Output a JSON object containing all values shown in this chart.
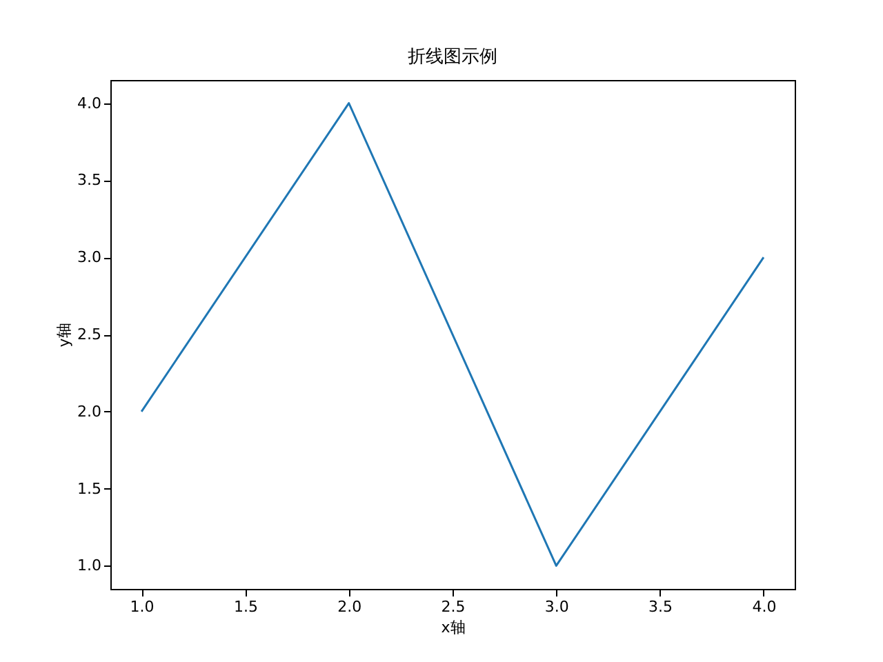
{
  "chart_data": {
    "type": "line",
    "title": "折线图示例",
    "xlabel": "x轴",
    "ylabel": "y轴",
    "x": [
      1,
      2,
      3,
      4
    ],
    "series": [
      {
        "color": "#1f77b4",
        "values": [
          2,
          4,
          1,
          3
        ]
      }
    ],
    "xlim": [
      0.85,
      4.15
    ],
    "ylim": [
      0.85,
      4.15
    ],
    "xticks": [
      {
        "value": 1,
        "label": "1.0"
      },
      {
        "value": 1.5,
        "label": "1.5"
      },
      {
        "value": 2,
        "label": "2.0"
      },
      {
        "value": 2.5,
        "label": "2.5"
      },
      {
        "value": 3,
        "label": "3.0"
      },
      {
        "value": 3.5,
        "label": "3.5"
      },
      {
        "value": 4,
        "label": "4.0"
      }
    ],
    "yticks": [
      {
        "value": 1,
        "label": "1.0"
      },
      {
        "value": 1.5,
        "label": "1.5"
      },
      {
        "value": 2,
        "label": "2.0"
      },
      {
        "value": 2.5,
        "label": "2.5"
      },
      {
        "value": 3,
        "label": "3.0"
      },
      {
        "value": 3.5,
        "label": "3.5"
      },
      {
        "value": 4,
        "label": "4.0"
      }
    ],
    "grid": false,
    "marker": "none",
    "line_style": "solid"
  }
}
